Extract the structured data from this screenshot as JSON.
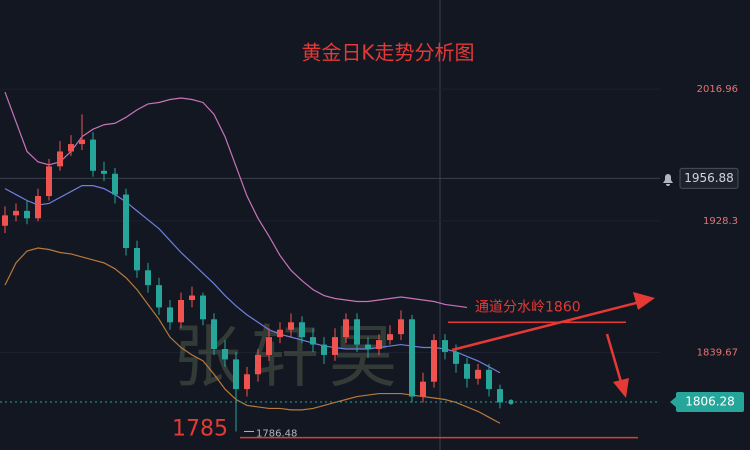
{
  "chart_data": {
    "type": "candlestick",
    "title": "黄金日K走势分析图",
    "watermark": "张轩昊",
    "up_color": "#ef5350",
    "down_color": "#26a69a",
    "open": [
      1925,
      1932,
      1935,
      1930,
      1945,
      1965,
      1975,
      1980,
      1983,
      1962,
      1960,
      1946,
      1910,
      1895,
      1885,
      1870,
      1860,
      1875,
      1878,
      1862,
      1842,
      1835,
      1815,
      1825,
      1838,
      1850,
      1855,
      1860,
      1850,
      1845,
      1838,
      1850,
      1862,
      1845,
      1842,
      1848,
      1852,
      1862,
      1810,
      1820,
      1848,
      1840,
      1832,
      1822,
      1828,
      1815
    ],
    "high": [
      1938,
      1940,
      1942,
      1950,
      1970,
      1982,
      1986,
      2000,
      1988,
      1968,
      1964,
      1950,
      1915,
      1900,
      1890,
      1875,
      1880,
      1884,
      1880,
      1866,
      1848,
      1840,
      1830,
      1842,
      1856,
      1860,
      1866,
      1864,
      1856,
      1850,
      1856,
      1866,
      1866,
      1850,
      1852,
      1858,
      1868,
      1865,
      1826,
      1852,
      1852,
      1845,
      1836,
      1832,
      1832,
      1818
    ],
    "low": [
      1920,
      1928,
      1926,
      1928,
      1942,
      1962,
      1972,
      1976,
      1958,
      1955,
      1940,
      1905,
      1890,
      1880,
      1865,
      1855,
      1856,
      1870,
      1858,
      1838,
      1830,
      1786.48,
      1810,
      1820,
      1834,
      1846,
      1850,
      1846,
      1840,
      1832,
      1834,
      1846,
      1840,
      1836,
      1838,
      1845,
      1848,
      1806,
      1806,
      1816,
      1835,
      1826,
      1816,
      1818,
      1810,
      1802
    ],
    "close": [
      1932,
      1935,
      1930,
      1945,
      1965,
      1975,
      1980,
      1983,
      1962,
      1960,
      1946,
      1910,
      1895,
      1885,
      1870,
      1860,
      1875,
      1878,
      1862,
      1842,
      1835,
      1815,
      1825,
      1838,
      1850,
      1855,
      1860,
      1850,
      1845,
      1838,
      1850,
      1862,
      1845,
      1842,
      1848,
      1852,
      1862,
      1810,
      1820,
      1848,
      1840,
      1832,
      1822,
      1828,
      1815,
      1806
    ],
    "series": [
      {
        "color": "#c774b8",
        "values": [
          2015,
          1995,
          1975,
          1968,
          1966,
          1968,
          1975,
          1985,
          1990,
          1993,
          1994,
          1998,
          2003,
          2007,
          2008,
          2010,
          2011,
          2010,
          2008,
          2000,
          1985,
          1965,
          1945,
          1930,
          1918,
          1905,
          1895,
          1888,
          1882,
          1878,
          1876,
          1875,
          1874,
          1874,
          1875,
          1876,
          1877,
          1876,
          1875,
          1874,
          1872,
          1871,
          1870,
          null,
          null,
          null
        ]
      },
      {
        "color": "#6f7fe0",
        "values": [
          1950,
          1946,
          1942,
          1939,
          1940,
          1944,
          1948,
          1952,
          1952,
          1950,
          1946,
          1941,
          1935,
          1929,
          1923,
          1915,
          1907,
          1900,
          1893,
          1886,
          1878,
          1871,
          1865,
          1860,
          1855,
          1852,
          1850,
          1848,
          1846,
          1844,
          1843,
          1842,
          1842,
          1842,
          1843,
          1844,
          1845,
          1844,
          1843,
          1843,
          1842,
          1840,
          1837,
          1834,
          1830,
          1826
        ]
      },
      {
        "color": "#b8793a",
        "values": [
          1885,
          1900,
          1908,
          1910,
          1909,
          1907,
          1906,
          1904,
          1902,
          1900,
          1896,
          1890,
          1882,
          1872,
          1862,
          1850,
          1843,
          1838,
          1834,
          1825,
          1815,
          1808,
          1804,
          1803,
          1802,
          1802,
          1801,
          1801,
          1802,
          1804,
          1806,
          1808,
          1810,
          1811,
          1812,
          1812,
          1812,
          1811,
          1810,
          1809,
          1808,
          1806,
          1803,
          1800,
          1796,
          1792
        ]
      }
    ],
    "ylim": [
      1774,
      2077
    ],
    "yticks": [
      2016.96,
      1928.3,
      1839.67
    ],
    "crosshair_price": 1956.88,
    "last_price": 1806.28,
    "low_marker": 1786.48,
    "annotations": [
      {
        "text": "通道分水岭1860",
        "value": 1860
      },
      {
        "text": "1785",
        "value": 1785
      }
    ]
  }
}
